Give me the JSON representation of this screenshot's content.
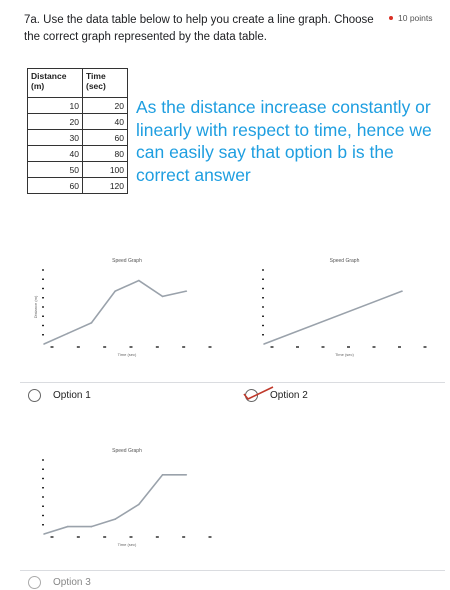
{
  "question": {
    "text": "7a. Use the data table below to help you create a line graph. Choose the correct graph represented by the data table.",
    "points": "10 points"
  },
  "table": {
    "headers": [
      "Distance (m)",
      "Time (sec)"
    ],
    "rows": [
      [
        "10",
        "20"
      ],
      [
        "20",
        "40"
      ],
      [
        "30",
        "60"
      ],
      [
        "40",
        "80"
      ],
      [
        "50",
        "100"
      ],
      [
        "60",
        "120"
      ]
    ]
  },
  "answer_text": "As the distance increase constantly or linearly with respect to time, hence we can easily say that option b is the correct answer",
  "colors": {
    "answer": "#1e9ee0",
    "line": "#9aa2ab",
    "check": "#c0392b"
  },
  "options": [
    {
      "label": "Option 1",
      "selected": false,
      "chart_data": {
        "type": "line",
        "title": "Speed Graph",
        "xlabel": "Time (sec)",
        "ylabel": "Distance (m)",
        "x": [
          0,
          1,
          2,
          3,
          4,
          5,
          6
        ],
        "values": [
          0,
          1,
          2,
          5,
          6,
          4.5,
          5
        ],
        "xlim": [
          0,
          7
        ],
        "ylim": [
          0,
          7
        ]
      }
    },
    {
      "label": "Option 2",
      "selected": true,
      "chart_data": {
        "type": "line",
        "title": "Speed Graph",
        "xlabel": "Time (sec)",
        "ylabel": "",
        "x": [
          0,
          6
        ],
        "values": [
          0,
          5
        ],
        "xlim": [
          0,
          7
        ],
        "ylim": [
          0,
          7
        ]
      }
    },
    {
      "label": "Option 3",
      "selected": false,
      "chart_data": {
        "type": "line",
        "title": "Speed Graph",
        "xlabel": "Time (sec)",
        "ylabel": "",
        "x": [
          0,
          1,
          2,
          3,
          4,
          5,
          6
        ],
        "values": [
          0,
          0.5,
          0.5,
          1,
          2,
          4,
          4
        ],
        "xlim": [
          0,
          7
        ],
        "ylim": [
          0,
          5
        ]
      }
    }
  ]
}
